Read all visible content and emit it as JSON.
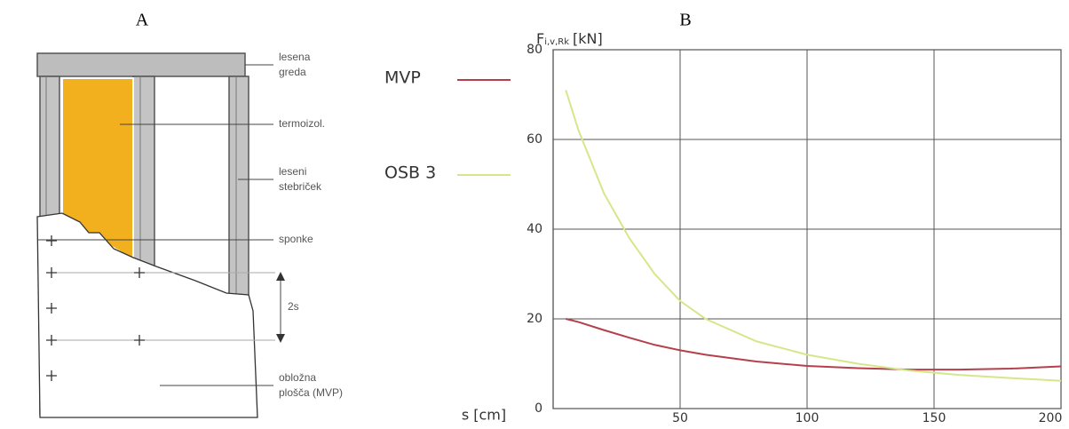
{
  "panel_labels": [
    "A",
    "B"
  ],
  "diagram": {
    "labels": [
      [
        "lesena",
        "greda"
      ],
      [
        "termoizol."
      ],
      [
        "leseni",
        "stebriček"
      ],
      [
        "sponke"
      ],
      [
        "2s"
      ],
      [
        "obložna",
        "plošča (MVP)"
      ]
    ]
  },
  "chart_data": {
    "type": "line",
    "y_label": {
      "symbol": "F",
      "subscript": "i,v,Rk",
      "unit": "[kN]"
    },
    "x_label": "s [cm]",
    "x": [
      5,
      10,
      20,
      30,
      40,
      50,
      60,
      80,
      100,
      120,
      140,
      160,
      180,
      200
    ],
    "series": [
      {
        "name": "MVP",
        "color": "#b5404c",
        "values": [
          20,
          19.3,
          17.5,
          15.8,
          14.2,
          13,
          12,
          10.5,
          9.5,
          9,
          8.7,
          8.7,
          8.9,
          9.4
        ]
      },
      {
        "name": "OSB 3",
        "color": "#d6e68a",
        "values": [
          71,
          62,
          48,
          38,
          30,
          24,
          20,
          15,
          12,
          10,
          8.5,
          7.5,
          6.8,
          6.2
        ]
      }
    ],
    "xlim": [
      0,
      200
    ],
    "xticks": [
      50,
      100,
      150,
      200
    ],
    "ylim": [
      0,
      80
    ],
    "yticks": [
      0,
      20,
      40,
      60,
      80
    ],
    "grid": true,
    "legend": "left"
  }
}
